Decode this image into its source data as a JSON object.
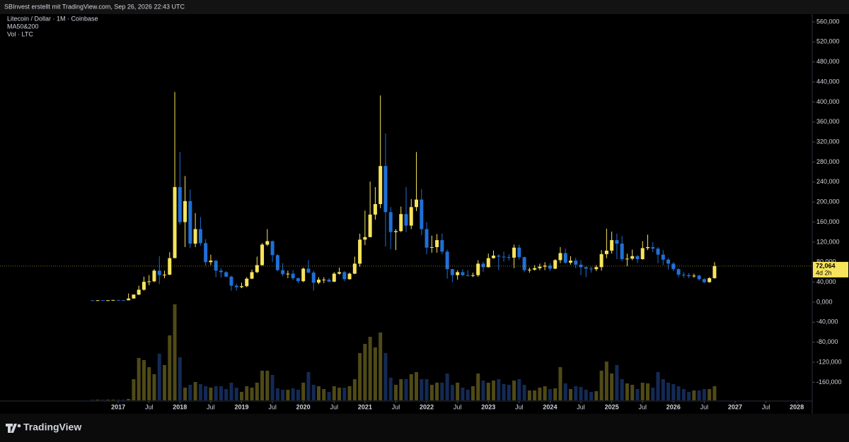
{
  "page": {
    "credit": "SBInvest erstellt mit TradingView.com, Sep 26, 2026 22:43 UTC",
    "brand": "TradingView"
  },
  "chart_data": {
    "type": "candlestick",
    "title": "Litecoin / Dollar · 1M · Coinbase",
    "annotations": [
      "MA50&200",
      "Vol · LTC"
    ],
    "up_color": "#f7e45c",
    "down_color": "#1f6fd6",
    "volume_up_color": "#4f4a17",
    "volume_down_color": "#142a55",
    "x": [
      "2016-08",
      "2016-09",
      "2016-10",
      "2016-11",
      "2016-12",
      "2017-01",
      "2017-02",
      "2017-03",
      "2017-04",
      "2017-05",
      "2017-06",
      "2017-07",
      "2017-08",
      "2017-09",
      "2017-10",
      "2017-11",
      "2017-12",
      "2018-01",
      "2018-02",
      "2018-03",
      "2018-04",
      "2018-05",
      "2018-06",
      "2018-07",
      "2018-08",
      "2018-09",
      "2018-10",
      "2018-11",
      "2018-12",
      "2019-01",
      "2019-02",
      "2019-03",
      "2019-04",
      "2019-05",
      "2019-06",
      "2019-07",
      "2019-08",
      "2019-09",
      "2019-10",
      "2019-11",
      "2019-12",
      "2020-01",
      "2020-02",
      "2020-03",
      "2020-04",
      "2020-05",
      "2020-06",
      "2020-07",
      "2020-08",
      "2020-09",
      "2020-10",
      "2020-11",
      "2020-12",
      "2021-01",
      "2021-02",
      "2021-03",
      "2021-04",
      "2021-05",
      "2021-06",
      "2021-07",
      "2021-08",
      "2021-09",
      "2021-10",
      "2021-11",
      "2021-12",
      "2022-01",
      "2022-02",
      "2022-03",
      "2022-04",
      "2022-05",
      "2022-06",
      "2022-07",
      "2022-08",
      "2022-09",
      "2022-10",
      "2022-11",
      "2022-12",
      "2023-01",
      "2023-02",
      "2023-03",
      "2023-04",
      "2023-05",
      "2023-06",
      "2023-07",
      "2023-08",
      "2023-09",
      "2023-10",
      "2023-11",
      "2023-12",
      "2024-01",
      "2024-02",
      "2024-03",
      "2024-04",
      "2024-05",
      "2024-06",
      "2024-07",
      "2024-08",
      "2024-09",
      "2024-10",
      "2024-11",
      "2024-12",
      "2025-01",
      "2025-02",
      "2025-03",
      "2025-04",
      "2025-05",
      "2025-06",
      "2025-07",
      "2025-08",
      "2025-09",
      "2025-10",
      "2025-11",
      "2025-12",
      "2026-01",
      "2026-02",
      "2026-03",
      "2026-04",
      "2026-05",
      "2026-06",
      "2026-07",
      "2026-08",
      "2026-09"
    ],
    "open": [
      3.8,
      3.7,
      3.9,
      3.8,
      3.9,
      4.4,
      3.9,
      3.8,
      7.3,
      15.2,
      24.9,
      40.7,
      41.7,
      63,
      54,
      55,
      88,
      230,
      160,
      202,
      117,
      146,
      118,
      80,
      83,
      63,
      60,
      51,
      33,
      30,
      32,
      47,
      60,
      74,
      115,
      122,
      94,
      64,
      56,
      57,
      48,
      42,
      67,
      59,
      39,
      45,
      45,
      41,
      57,
      60,
      46,
      57,
      77,
      125,
      130,
      175,
      196,
      272,
      180,
      140,
      142,
      176,
      153,
      190,
      205,
      146,
      109,
      110,
      124,
      101,
      66,
      54,
      60,
      54,
      53,
      54,
      77,
      70,
      88,
      93,
      91,
      90,
      89,
      109,
      90,
      64,
      65,
      68,
      71,
      73,
      67,
      84,
      98,
      79,
      83,
      75,
      70,
      67,
      66,
      70,
      96,
      103,
      124,
      117,
      86,
      87,
      92,
      86,
      108,
      110,
      107,
      95,
      85,
      77,
      66,
      55,
      54,
      52,
      53,
      46,
      40,
      48
    ],
    "high": [
      3.9,
      4.0,
      4.0,
      4.2,
      4.6,
      4.6,
      4.0,
      17.5,
      15.7,
      33,
      51,
      54,
      66,
      92,
      63,
      100,
      420,
      300,
      252,
      225,
      178,
      170,
      126,
      95,
      84,
      68,
      62,
      53,
      37,
      39,
      50,
      65,
      91,
      118,
      146,
      123,
      96,
      78,
      63,
      64,
      49,
      69,
      84,
      63,
      50,
      50,
      48,
      60,
      69,
      62,
      59,
      91,
      137,
      183,
      241,
      230,
      413,
      337,
      190,
      146,
      191,
      230,
      206,
      300,
      226,
      160,
      133,
      136,
      137,
      105,
      67,
      64,
      66,
      64,
      59,
      84,
      81,
      97,
      103,
      96,
      101,
      96,
      115,
      115,
      91,
      69,
      74,
      77,
      80,
      78,
      86,
      110,
      107,
      92,
      89,
      84,
      71,
      71,
      74,
      104,
      147,
      141,
      137,
      132,
      97,
      105,
      94,
      122,
      135,
      120,
      110,
      104,
      88,
      80,
      68,
      60,
      58,
      57,
      55,
      48,
      50,
      80
    ],
    "low": [
      3.6,
      3.6,
      3.7,
      3.6,
      3.8,
      3.6,
      3.6,
      3.7,
      7.2,
      14,
      23,
      34,
      40,
      36,
      48,
      54,
      88,
      155,
      110,
      108,
      110,
      113,
      73,
      74,
      50,
      49,
      50,
      23,
      23,
      28,
      30,
      46,
      58,
      73,
      112,
      80,
      62,
      52,
      48,
      44,
      38,
      40,
      58,
      23,
      36,
      38,
      40,
      40,
      55,
      42,
      45,
      56,
      71,
      114,
      130,
      165,
      188,
      111,
      106,
      104,
      140,
      140,
      146,
      182,
      134,
      96,
      99,
      99,
      96,
      47,
      40,
      45,
      52,
      51,
      50,
      51,
      61,
      69,
      87,
      64,
      81,
      83,
      68,
      85,
      60,
      59,
      63,
      64,
      64,
      62,
      66,
      78,
      77,
      75,
      68,
      54,
      50,
      59,
      62,
      63,
      88,
      97,
      86,
      82,
      72,
      84,
      78,
      85,
      104,
      100,
      78,
      74,
      65,
      62,
      50,
      49,
      48,
      49,
      43,
      38,
      39,
      47
    ],
    "close": [
      3.7,
      3.9,
      3.8,
      3.9,
      4.4,
      3.9,
      3.8,
      7.3,
      15.2,
      24.9,
      40.7,
      41.7,
      63,
      54,
      55,
      88,
      230,
      160,
      202,
      117,
      146,
      118,
      80,
      83,
      63,
      60,
      51,
      33,
      30,
      32,
      47,
      60,
      74,
      115,
      122,
      94,
      64,
      56,
      57,
      48,
      42,
      67,
      59,
      39,
      45,
      45,
      41,
      57,
      60,
      46,
      57,
      77,
      125,
      130,
      175,
      196,
      272,
      180,
      140,
      142,
      176,
      153,
      190,
      205,
      146,
      109,
      110,
      124,
      101,
      66,
      54,
      60,
      54,
      53,
      54,
      77,
      70,
      88,
      93,
      91,
      90,
      89,
      109,
      90,
      64,
      65,
      68,
      71,
      73,
      67,
      84,
      98,
      79,
      83,
      75,
      70,
      67,
      66,
      70,
      96,
      103,
      124,
      117,
      86,
      87,
      92,
      86,
      108,
      110,
      107,
      95,
      85,
      77,
      66,
      55,
      54,
      52,
      53,
      46,
      40,
      48,
      72.064
    ],
    "volume": [
      1,
      1,
      1,
      1,
      1,
      1,
      1,
      2,
      30,
      60,
      57,
      47,
      37,
      66,
      50,
      92,
      136,
      61,
      18,
      22,
      26,
      23,
      20,
      18,
      20,
      20,
      16,
      25,
      18,
      12,
      20,
      18,
      25,
      42,
      42,
      36,
      17,
      15,
      15,
      17,
      15,
      25,
      40,
      22,
      20,
      16,
      12,
      20,
      18,
      18,
      20,
      30,
      67,
      80,
      90,
      75,
      96,
      67,
      32,
      22,
      30,
      30,
      37,
      40,
      30,
      30,
      22,
      25,
      25,
      38,
      22,
      25,
      18,
      15,
      20,
      38,
      28,
      25,
      28,
      30,
      23,
      22,
      28,
      30,
      22,
      14,
      14,
      18,
      20,
      16,
      17,
      47,
      24,
      16,
      20,
      19,
      15,
      12,
      13,
      42,
      55,
      38,
      50,
      30,
      24,
      22,
      16,
      25,
      24,
      18,
      40,
      30,
      25,
      23,
      20,
      16,
      12,
      14,
      14,
      16,
      16,
      20
    ],
    "xlim": [
      "2015-02",
      "2028-04"
    ],
    "xticks": [
      {
        "value": "2017-01",
        "label": "2017"
      },
      {
        "value": "2017-07",
        "label": "Jul"
      },
      {
        "value": "2018-01",
        "label": "2018"
      },
      {
        "value": "2018-07",
        "label": "Jul"
      },
      {
        "value": "2019-01",
        "label": "2019"
      },
      {
        "value": "2019-07",
        "label": "Jul"
      },
      {
        "value": "2020-01",
        "label": "2020"
      },
      {
        "value": "2020-07",
        "label": "Jul"
      },
      {
        "value": "2021-01",
        "label": "2021"
      },
      {
        "value": "2021-07",
        "label": "Jul"
      },
      {
        "value": "2022-01",
        "label": "2022"
      },
      {
        "value": "2022-07",
        "label": "Jul"
      },
      {
        "value": "2023-01",
        "label": "2023"
      },
      {
        "value": "2023-07",
        "label": "Jul"
      },
      {
        "value": "2024-01",
        "label": "2024"
      },
      {
        "value": "2024-07",
        "label": "Jul"
      },
      {
        "value": "2025-01",
        "label": "2025"
      },
      {
        "value": "2025-07",
        "label": "Jul"
      },
      {
        "value": "2026-01",
        "label": "2026"
      },
      {
        "value": "2026-07",
        "label": "Jul"
      },
      {
        "value": "2027-01",
        "label": "2027"
      },
      {
        "value": "2027-07",
        "label": "Jul"
      },
      {
        "value": "2028-01",
        "label": "2028"
      }
    ],
    "ylim": [
      -197.5,
      575.5
    ],
    "yticks": [
      {
        "value": 560,
        "label": "560,000"
      },
      {
        "value": 520,
        "label": "520,000"
      },
      {
        "value": 480,
        "label": "480,000"
      },
      {
        "value": 440,
        "label": "440,000"
      },
      {
        "value": 400,
        "label": "400,000"
      },
      {
        "value": 360,
        "label": "360,000"
      },
      {
        "value": 320,
        "label": "320,000"
      },
      {
        "value": 280,
        "label": "280,000"
      },
      {
        "value": 240,
        "label": "240,000"
      },
      {
        "value": 200,
        "label": "200,000"
      },
      {
        "value": 160,
        "label": "160,000"
      },
      {
        "value": 120,
        "label": "120,000"
      },
      {
        "value": 80,
        "label": "80,000"
      },
      {
        "value": 40,
        "label": "40,000"
      },
      {
        "value": 0,
        "label": "0,000"
      },
      {
        "value": -40,
        "label": "-40,000"
      },
      {
        "value": -80,
        "label": "-80,000"
      },
      {
        "value": -120,
        "label": "-120,000"
      },
      {
        "value": -160,
        "label": "-160,000"
      }
    ],
    "last_price": {
      "value": 72.064,
      "label": "72,064"
    },
    "countdown": "4d 2h"
  }
}
